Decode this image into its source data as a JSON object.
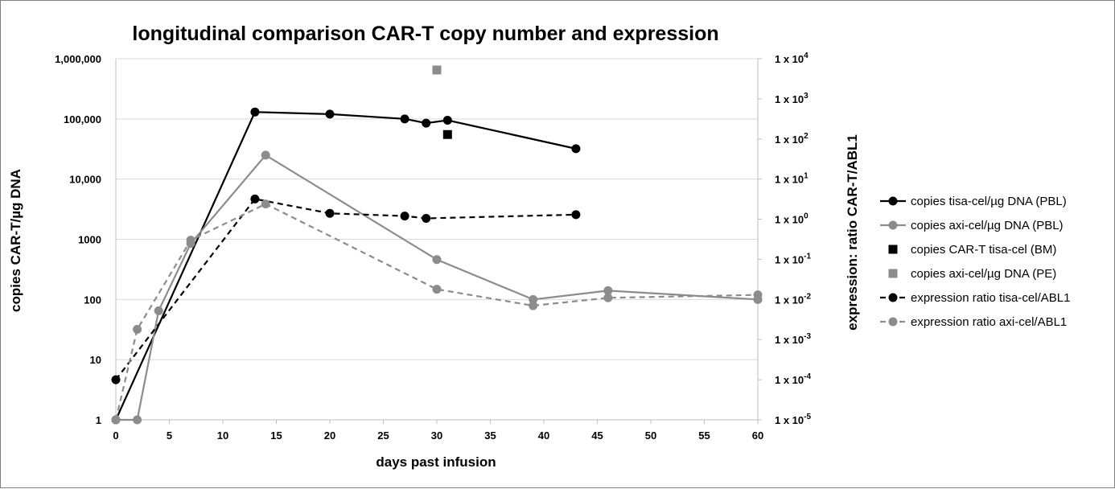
{
  "chart_data": {
    "type": "line",
    "title": "longitudinal comparison CAR-T copy number and expression",
    "xlabel": "days past infusion",
    "ylabel_left": "copies CAR-T/µg DNA",
    "ylabel_right": "expression: ratio CAR-T/ABL1",
    "xlim": [
      0,
      60
    ],
    "ylim_left": [
      1,
      1000000
    ],
    "ylim_right": [
      1e-05,
      10000
    ],
    "left_scale": "log",
    "right_scale": "log",
    "x_ticks": [
      "0",
      "5",
      "10",
      "15",
      "20",
      "25",
      "30",
      "35",
      "40",
      "45",
      "50",
      "55",
      "60"
    ],
    "y_left_ticks": [
      "1",
      "10",
      "100",
      "1000",
      "10,000",
      "100,000",
      "1,000,000"
    ],
    "y_right_ticks": [
      {
        "base": "1 x 10",
        "exp": "-5"
      },
      {
        "base": "1 x 10",
        "exp": "-4"
      },
      {
        "base": "1 x 10",
        "exp": "-3"
      },
      {
        "base": "1 x 10",
        "exp": "-2"
      },
      {
        "base": "1 x 10",
        "exp": "-1"
      },
      {
        "base": "1 x 10",
        "exp": "0"
      },
      {
        "base": "1 x 10",
        "exp": "1"
      },
      {
        "base": "1 x 10",
        "exp": "2"
      },
      {
        "base": "1 x 10",
        "exp": "3"
      },
      {
        "base": "1 x 10",
        "exp": "4"
      }
    ],
    "grid": true,
    "legend_position": "right",
    "series": [
      {
        "name": "copies tisa-cel/µg DNA (PBL)",
        "axis": "left",
        "style": "solid",
        "marker": "circle",
        "color": "#000000",
        "points": [
          [
            0,
            1
          ],
          [
            13,
            130000
          ],
          [
            20,
            120000
          ],
          [
            27,
            100000
          ],
          [
            29,
            85000
          ],
          [
            31,
            95000
          ],
          [
            43,
            32000
          ]
        ]
      },
      {
        "name": "copies axi-cel/µg DNA (PBL)",
        "axis": "left",
        "style": "solid",
        "marker": "circle",
        "color": "#8c8c8c",
        "points": [
          [
            0,
            1
          ],
          [
            2,
            1
          ],
          [
            4,
            65
          ],
          [
            7,
            850
          ],
          [
            14,
            25000
          ],
          [
            30,
            460
          ],
          [
            39,
            100
          ],
          [
            46,
            140
          ],
          [
            60,
            100
          ]
        ]
      },
      {
        "name": "copies CAR-T tisa-cel (BM)",
        "axis": "left",
        "style": "none",
        "marker": "square",
        "color": "#000000",
        "points": [
          [
            31,
            55000
          ]
        ]
      },
      {
        "name": "copies axi-cel/µg DNA (PE)",
        "axis": "left",
        "style": "none",
        "marker": "square",
        "color": "#8c8c8c",
        "points": [
          [
            30,
            650000
          ]
        ]
      },
      {
        "name": "expression ratio tisa-cel/ABL1",
        "axis": "right",
        "style": "dashed",
        "marker": "circle",
        "color": "#000000",
        "points": [
          [
            0,
            0.0001
          ],
          [
            13,
            3.2
          ],
          [
            20,
            1.4
          ],
          [
            27,
            1.2
          ],
          [
            29,
            1.05
          ],
          [
            43,
            1.3
          ]
        ]
      },
      {
        "name": "expression ratio axi-cel/ABL1",
        "axis": "right",
        "style": "dashed",
        "marker": "circle",
        "color": "#8c8c8c",
        "points": [
          [
            0,
            1e-05
          ],
          [
            2,
            0.0018
          ],
          [
            7,
            0.3
          ],
          [
            14,
            2.4
          ],
          [
            30,
            0.018
          ],
          [
            39,
            0.007
          ],
          [
            46,
            0.011
          ],
          [
            60,
            0.013
          ]
        ]
      }
    ]
  }
}
